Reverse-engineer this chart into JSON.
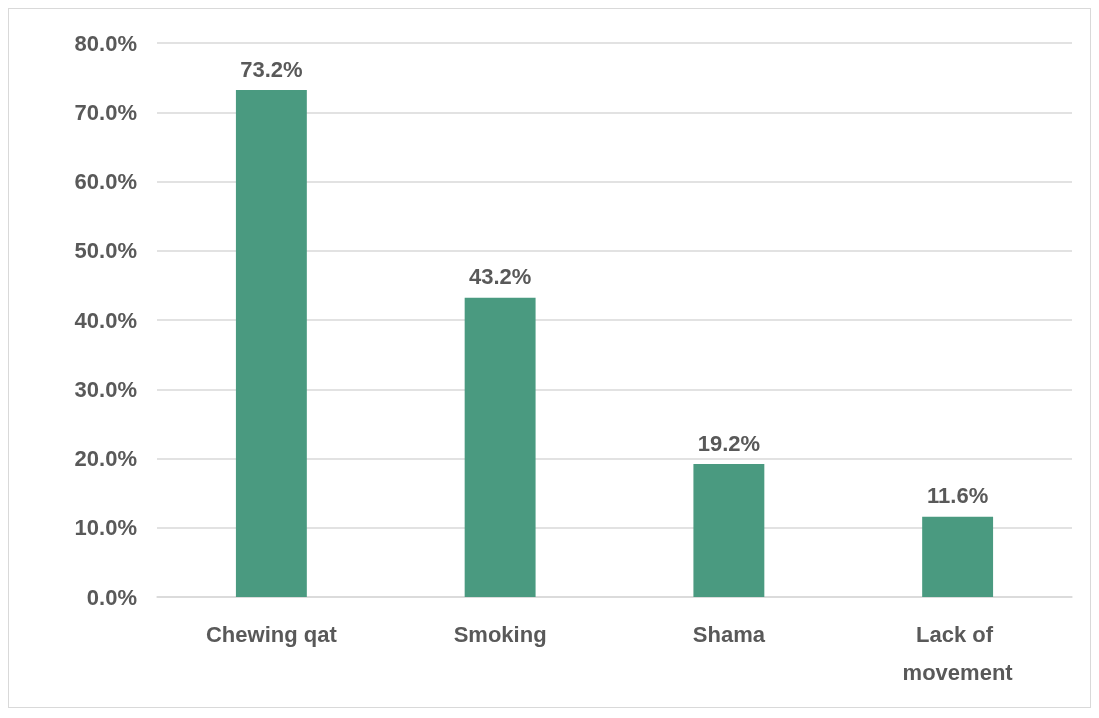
{
  "chart_data": {
    "type": "bar",
    "categories": [
      "Chewing qat",
      "Smoking",
      "Shama",
      "Lack of movement"
    ],
    "values": [
      73.2,
      43.2,
      19.2,
      11.6
    ],
    "value_labels": [
      "73.2%",
      "43.2%",
      "19.2%",
      "11.6%"
    ],
    "color": "#4a9a80",
    "ylim": [
      0,
      80
    ],
    "yticks": [
      {
        "value": 0,
        "label": "0.0%"
      },
      {
        "value": 10,
        "label": "10.0%"
      },
      {
        "value": 20,
        "label": "20.0%"
      },
      {
        "value": 30,
        "label": "30.0%"
      },
      {
        "value": 40,
        "label": "40.0%"
      },
      {
        "value": 50,
        "label": "50.0%"
      },
      {
        "value": 60,
        "label": "60.0%"
      },
      {
        "value": 70,
        "label": "70.0%"
      },
      {
        "value": 80,
        "label": "80.0%"
      }
    ],
    "grid": true
  }
}
